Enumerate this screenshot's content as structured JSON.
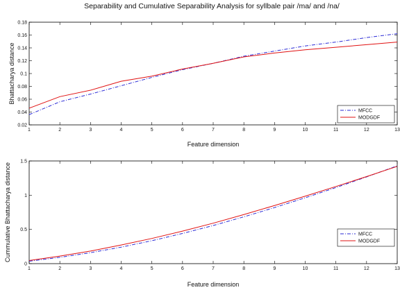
{
  "colors": {
    "mfcc": "#2a2ad6",
    "modgdf": "#e01010",
    "axis": "#000000"
  },
  "chart_data": [
    {
      "type": "line",
      "title": "Separability and Cumulative Separability Analysis for syllbale pair /ma/ and /na/",
      "xlabel": "Feature dimension",
      "ylabel": "Bhattacharya distance",
      "xlim": [
        1,
        13
      ],
      "ylim": [
        0.02,
        0.18
      ],
      "xticks": [
        "1",
        "2",
        "3",
        "4",
        "5",
        "6",
        "7",
        "8",
        "9",
        "10",
        "11",
        "12",
        "13"
      ],
      "yticks": [
        "0.02",
        "0.04",
        "0.06",
        "0.08",
        "0.1",
        "0.12",
        "0.14",
        "0.16",
        "0.18"
      ],
      "grid": false,
      "legend": "right",
      "x": [
        1,
        2,
        3,
        4,
        5,
        6,
        7,
        8,
        9,
        10,
        11,
        12,
        13
      ],
      "series": [
        {
          "name": "MFCC",
          "style": "dash-dot",
          "values": [
            0.036,
            0.056,
            0.068,
            0.081,
            0.094,
            0.106,
            0.116,
            0.127,
            0.135,
            0.143,
            0.149,
            0.156,
            0.162
          ]
        },
        {
          "name": "MODGDF",
          "style": "solid",
          "values": [
            0.046,
            0.064,
            0.074,
            0.088,
            0.096,
            0.107,
            0.116,
            0.126,
            0.132,
            0.137,
            0.141,
            0.145,
            0.149
          ]
        }
      ]
    },
    {
      "type": "line",
      "title": "",
      "xlabel": "Feature dimension",
      "ylabel": "Cummulative Bhattacharya distance",
      "xlim": [
        1,
        13
      ],
      "ylim": [
        0,
        1.5
      ],
      "xticks": [
        "1",
        "2",
        "3",
        "4",
        "5",
        "6",
        "7",
        "8",
        "9",
        "10",
        "11",
        "12",
        "13"
      ],
      "yticks": [
        "0",
        "0.5",
        "1",
        "1.5"
      ],
      "grid": false,
      "legend": "right",
      "x": [
        1,
        2,
        3,
        4,
        5,
        6,
        7,
        8,
        9,
        10,
        11,
        12,
        13
      ],
      "series": [
        {
          "name": "MFCC",
          "style": "dash-dot",
          "values": [
            0.036,
            0.092,
            0.16,
            0.241,
            0.335,
            0.441,
            0.557,
            0.684,
            0.819,
            0.962,
            1.111,
            1.267,
            1.429
          ]
        },
        {
          "name": "MODGDF",
          "style": "solid",
          "values": [
            0.046,
            0.11,
            0.184,
            0.272,
            0.368,
            0.475,
            0.591,
            0.717,
            0.849,
            0.986,
            1.127,
            1.272,
            1.421
          ]
        }
      ]
    }
  ]
}
